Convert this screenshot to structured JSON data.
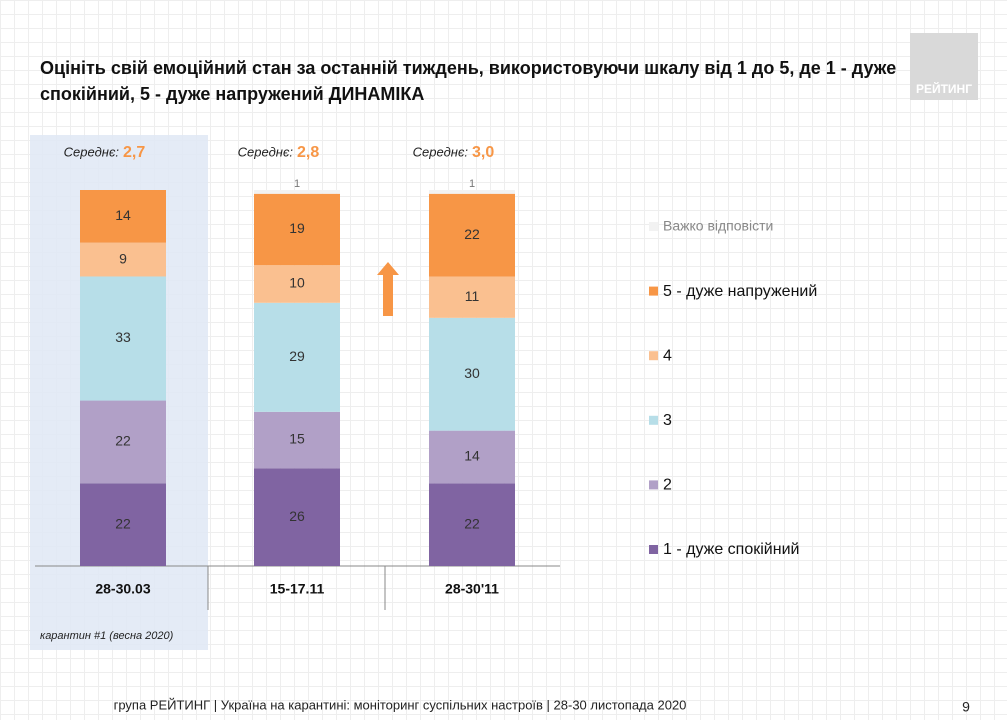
{
  "chart_data": {
    "type": "stacked-bar",
    "title": "Оцініть свій емоційний стан за останній тиждень, використовуючи шкалу від 1 до 5, де 1 - дуже спокійний, 5 - дуже напружений ДИНАМІКА",
    "categories": [
      "28-30.03",
      "15-17.11",
      "28-30'11"
    ],
    "series": [
      {
        "name": "1 - дуже спокійний",
        "color": "#8064a2",
        "values": [
          22,
          26,
          22
        ]
      },
      {
        "name": "2",
        "color": "#b1a0c7",
        "values": [
          22,
          15,
          14
        ]
      },
      {
        "name": "3",
        "color": "#b7dee8",
        "values": [
          33,
          29,
          30
        ]
      },
      {
        "name": "4",
        "color": "#fac090",
        "values": [
          9,
          10,
          11
        ]
      },
      {
        "name": "5 - дуже напружений",
        "color": "#f79646",
        "values": [
          14,
          19,
          22
        ]
      },
      {
        "name": "Важко відповісти",
        "color": "#f2f2f2",
        "values": [
          null,
          1,
          1
        ]
      }
    ],
    "means": {
      "label": "Середнє:",
      "values": [
        2.7,
        2.8,
        3.0
      ],
      "value_labels": [
        "2,7",
        "2,8",
        "3,0"
      ]
    },
    "annotation": "карантин #1 (весна 2020)"
  },
  "logo": "РЕЙТИНГ",
  "footer": "група РЕЙТИНГ | Україна на карантині: моніторинг суспільних настроїв | 28-30 листопада 2020",
  "page_number": "9"
}
